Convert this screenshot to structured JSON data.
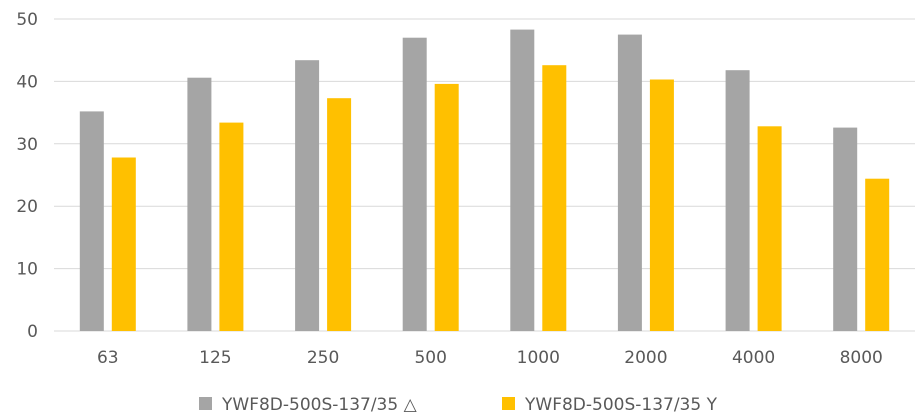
{
  "chart_data": {
    "type": "bar",
    "categories": [
      "63",
      "125",
      "250",
      "500",
      "1000",
      "2000",
      "4000",
      "8000"
    ],
    "series": [
      {
        "name": "YWF8D-500S-137/35 △",
        "color": "#a5a5a5",
        "values": [
          35.2,
          40.6,
          43.4,
          47.0,
          48.3,
          47.5,
          41.8,
          32.6
        ]
      },
      {
        "name": "YWF8D-500S-137/35 Y",
        "color": "#ffc000",
        "values": [
          27.8,
          33.4,
          37.3,
          39.6,
          42.6,
          40.3,
          32.8,
          24.4
        ]
      }
    ],
    "y_ticks": [
      "0",
      "10",
      "20",
      "30",
      "40",
      "50"
    ],
    "ylim": [
      0,
      50
    ],
    "grid": true,
    "legend_position": "bottom"
  }
}
